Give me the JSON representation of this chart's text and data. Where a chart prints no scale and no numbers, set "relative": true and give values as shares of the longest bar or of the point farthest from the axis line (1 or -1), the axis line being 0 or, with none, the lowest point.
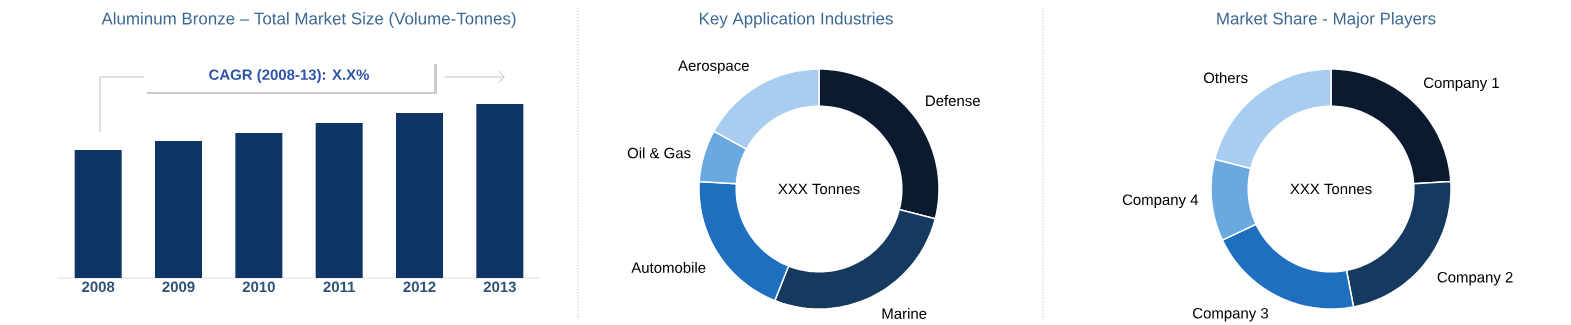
{
  "chart_data": [
    {
      "type": "bar",
      "title": "Aluminum Bronze – Total Market Size  (Volume-Tonnes)",
      "categories": [
        "2008",
        "2009",
        "2010",
        "2011",
        "2012",
        "2013"
      ],
      "values": [
        0.736,
        0.787,
        0.833,
        0.891,
        0.948,
        1
      ],
      "relative": true,
      "color": "#0e3566",
      "annotations": [
        "CAGR (2008-13): X.X%"
      ]
    },
    {
      "type": "donut",
      "title": "Key Application  Industries",
      "categories": [
        "Defense",
        "Marine",
        "Automobile",
        "Oil & Gas",
        "Aerospace"
      ],
      "values": [
        29,
        27,
        20,
        7,
        17
      ],
      "colors": [
        "#0b1a2e",
        "#163a5f",
        "#1f6fbf",
        "#6aa8e0",
        "#a9cdf0"
      ],
      "annotations": [
        "XXX Tonnes"
      ]
    },
    {
      "type": "donut",
      "title": "Market Share - Major Players",
      "categories": [
        "Company 1",
        "Company 2",
        "Company 3",
        "Company 4",
        "Others"
      ],
      "values": [
        24,
        23,
        21,
        11,
        21
      ],
      "colors": [
        "#0b1a2e",
        "#163a5f",
        "#1f6fbf",
        "#6aa8e0",
        "#a9cdf0"
      ],
      "annotations": [
        "XXX Tonnes"
      ]
    }
  ]
}
